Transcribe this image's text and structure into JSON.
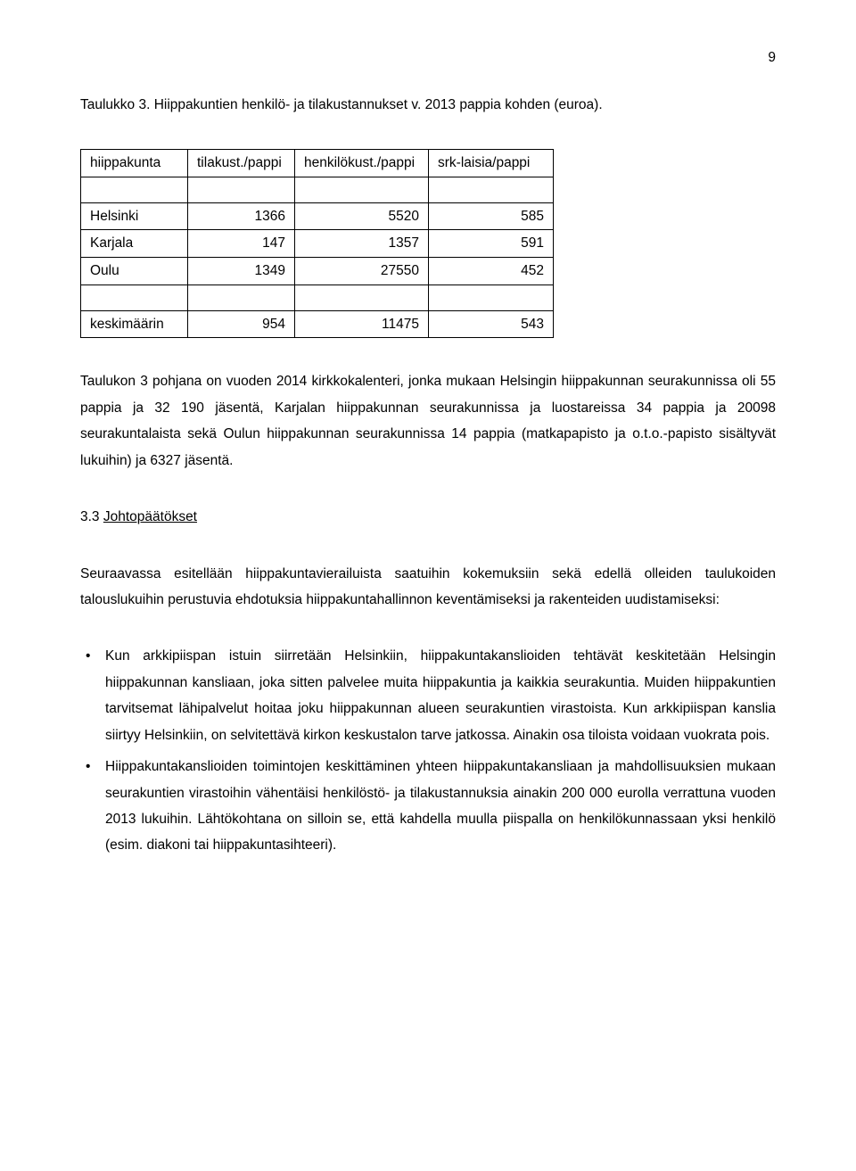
{
  "page_number": "9",
  "title": "Taulukko 3.  Hiippakuntien henkilö- ja tilakustannukset v. 2013 pappia kohden (euroa).",
  "table": {
    "headers": [
      "hiippakunta",
      "tilakust./pappi",
      "henkilökust./pappi",
      "srk-laisia/pappi"
    ],
    "col_widths": [
      "120px",
      "120px",
      "150px",
      "140px"
    ],
    "rows": [
      {
        "cells": [
          "Helsinki",
          "1366",
          "5520",
          "585"
        ],
        "align": [
          "left",
          "right",
          "right",
          "right"
        ]
      },
      {
        "cells": [
          "Karjala",
          "147",
          "1357",
          "591"
        ],
        "align": [
          "left",
          "right",
          "right",
          "right"
        ]
      },
      {
        "cells": [
          "Oulu",
          "1349",
          "27550",
          "452"
        ],
        "align": [
          "left",
          "right",
          "right",
          "right"
        ]
      },
      {
        "cells": [
          "keskimäärin",
          "954",
          "11475",
          "543"
        ],
        "align": [
          "left",
          "right",
          "right",
          "right"
        ]
      }
    ]
  },
  "paragraph1": "Taulukon 3 pohjana on vuoden 2014 kirkkokalenteri, jonka mukaan Helsingin hiippakunnan seurakunnissa oli 55 pappia ja 32 190 jäsentä, Karjalan hiippakunnan seurakunnissa ja luostareissa 34 pappia ja 20098 seurakuntalaista sekä Oulun hiippakunnan seurakunnissa 14 pappia (matkapapisto ja o.t.o.-papisto sisältyvät lukuihin) ja 6327 jäsentä.",
  "section_number": "3.3 ",
  "section_title": "Johtopäätökset",
  "paragraph2": "Seuraavassa esitellään hiippakuntavierailuista saatuihin kokemuksiin sekä edellä olleiden taulukoiden talouslukuihin perustuvia ehdotuksia  hiippakuntahallinnon keventämiseksi ja rakenteiden uudistamiseksi:",
  "bullets": [
    "Kun arkkipiispan istuin siirretään Helsinkiin, hiippakuntakanslioiden tehtävät  keskitetään Helsingin hiippakunnan kansliaan, joka sitten palvelee muita hiippakuntia ja kaikkia seurakuntia. Muiden hiippakuntien tarvitsemat lähipalvelut hoitaa joku hiippakunnan alueen seurakuntien virastoista. Kun arkkipiispan kanslia siirtyy Helsinkiin, on selvitettävä kirkon keskustalon tarve jatkossa. Ainakin osa tiloista voidaan vuokrata pois.",
    "Hiippakuntakanslioiden toimintojen keskittäminen yhteen hiippakuntakansliaan ja mahdollisuuksien mukaan seurakuntien virastoihin vähentäisi henkilöstö- ja tilakustannuksia ainakin 200 000 eurolla verrattuna vuoden 2013 lukuihin. Lähtökohtana on silloin se, että kahdella muulla piispalla on henkilökunnassaan yksi henkilö (esim. diakoni tai hiippakuntasihteeri)."
  ]
}
